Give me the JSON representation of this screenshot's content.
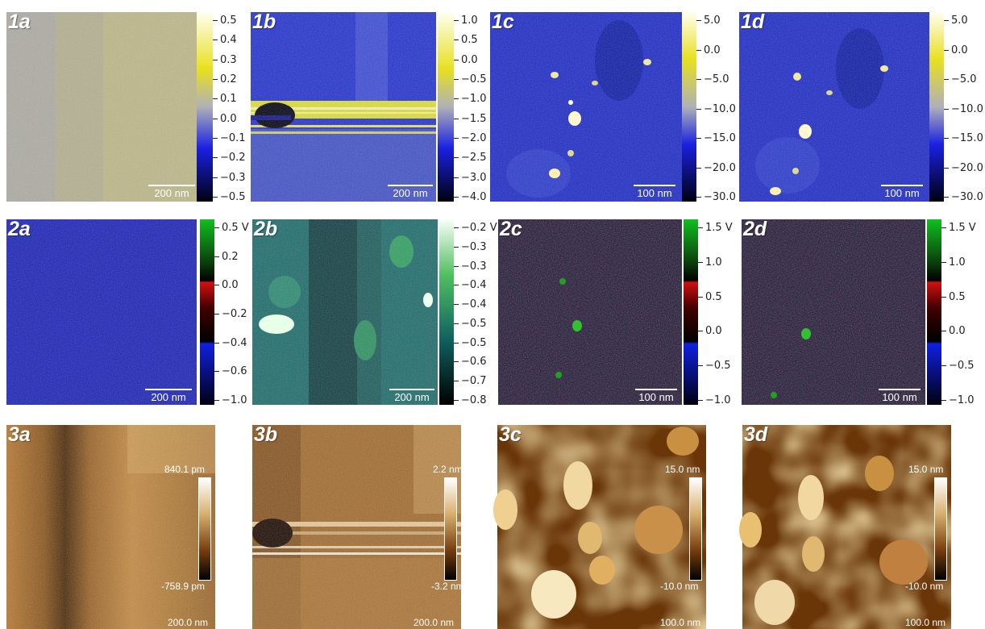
{
  "row1": {
    "a": {
      "label": "1a",
      "scale": "200 nm",
      "ticks": [
        "0.5",
        "0.4",
        "0.3",
        "0.2",
        "0.1",
        "0.0",
        "−0.1",
        "−0.2",
        "−0.3",
        "−0.5"
      ]
    },
    "b": {
      "label": "1b",
      "scale": "200 nm",
      "ticks": [
        "1.0",
        "0.5",
        "0.0",
        "−0.5",
        "−1.0",
        "−1.5",
        "−2.0",
        "−2.5",
        "−3.0",
        "−4.0"
      ]
    },
    "c": {
      "label": "1c",
      "scale": "100 nm",
      "ticks": [
        "5.0",
        "0.0",
        "−5.0",
        "−10.0",
        "−15.0",
        "−20.0",
        "−30.0"
      ]
    },
    "d": {
      "label": "1d",
      "scale": "100 nm",
      "ticks": [
        "5.0",
        "0.0",
        "−5.0",
        "−10.0",
        "−15.0",
        "−20.0",
        "−30.0"
      ]
    }
  },
  "row2": {
    "a": {
      "label": "2a",
      "scale": "200 nm",
      "ticks": [
        "0.5 V",
        "0.2",
        "0.0",
        "−0.2",
        "−0.4",
        "−0.6",
        "−1.0"
      ]
    },
    "b": {
      "label": "2b",
      "scale": "200 nm",
      "ticks": [
        "−0.2 V",
        "−0.3",
        "−0.3",
        "−0.4",
        "−0.4",
        "−0.5",
        "−0.5",
        "−0.6",
        "−0.7",
        "−0.8"
      ]
    },
    "c": {
      "label": "2c",
      "scale": "100 nm",
      "ticks": [
        "1.5 V",
        "1.0",
        "0.5",
        "0.0",
        "−0.5",
        "−1.0"
      ]
    },
    "d": {
      "label": "2d",
      "scale": "100 nm",
      "ticks": [
        "1.5 V",
        "1.0",
        "0.5",
        "0.0",
        "−0.5",
        "−1.0"
      ]
    }
  },
  "row3": {
    "a": {
      "label": "3a",
      "scale": "200.0 nm",
      "max": "840.1 pm",
      "min": "-758.9 pm"
    },
    "b": {
      "label": "3b",
      "scale": "200.0 nm",
      "max": "2.2 nm",
      "min": "-3.2 nm"
    },
    "c": {
      "label": "3c",
      "scale": "100.0 nm",
      "max": "15.0 nm",
      "min": "-10.0 nm"
    },
    "d": {
      "label": "3d",
      "scale": "100.0 nm",
      "max": "15.0 nm",
      "min": "-10.0 nm"
    }
  }
}
